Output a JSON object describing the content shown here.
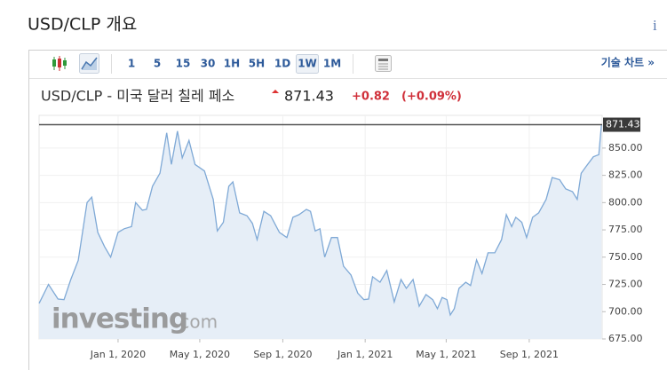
{
  "header": {
    "title": "USD/CLP 개요",
    "info": "i"
  },
  "toolbar": {
    "intervals": [
      "1",
      "5",
      "15",
      "30",
      "1H",
      "5H",
      "1D",
      "1W",
      "1M"
    ],
    "selected": "1W",
    "technical": "기술 차트 »"
  },
  "quote": {
    "name": "USD/CLP - 미국 달러 칠레 페소",
    "price": 871.43,
    "change": "+0.82",
    "change_pct": "(+0.09%)"
  },
  "watermark": {
    "brand": "investing",
    "suffix": ".com"
  },
  "chart_data": {
    "type": "area",
    "color": "#7fa9d6",
    "fill": "#e6eef7",
    "grid": true,
    "x": [
      "Sep 6, 2019",
      "Sep 20, 2019",
      "Oct 4, 2019",
      "Oct 13, 2019",
      "Oct 23, 2019",
      "Nov 3, 2019",
      "Nov 16, 2019",
      "Nov 23, 2019",
      "Dec 2, 2019",
      "Dec 12, 2019",
      "Dec 21, 2019",
      "Jan 1, 2020",
      "Jan 10, 2020",
      "Jan 21, 2020",
      "Jan 27, 2020",
      "Feb 6, 2020",
      "Feb 12, 2020",
      "Feb 21, 2020",
      "Mar 3, 2020",
      "Mar 13, 2020",
      "Mar 20, 2020",
      "Mar 29, 2020",
      "Apr 5, 2020",
      "Apr 15, 2020",
      "Apr 24, 2020",
      "May 8, 2020",
      "May 21, 2020",
      "May 27, 2020",
      "Jun 5, 2020",
      "Jun 13, 2020",
      "Jun 19, 2020",
      "Jun 29, 2020",
      "Jul 10, 2020",
      "Jul 18, 2020",
      "Jul 25, 2020",
      "Aug 4, 2020",
      "Aug 14, 2020",
      "Aug 27, 2020",
      "Sep 7, 2020",
      "Sep 16, 2020",
      "Sep 25, 2020",
      "Oct 6, 2020",
      "Oct 12, 2020",
      "Oct 19, 2020",
      "Oct 26, 2020",
      "Nov 2, 2020",
      "Nov 12, 2020",
      "Nov 21, 2020",
      "Nov 30, 2020",
      "Dec 11, 2020",
      "Dec 21, 2020",
      "Dec 30, 2020",
      "Jan 6, 2021",
      "Jan 12, 2021",
      "Jan 23, 2021",
      "Feb 2, 2021",
      "Feb 13, 2021",
      "Feb 23, 2021",
      "Mar 3, 2021",
      "Mar 13, 2021",
      "Mar 22, 2021",
      "Apr 1, 2021",
      "Apr 11, 2021",
      "Apr 18, 2021",
      "Apr 25, 2021",
      "May 2, 2021",
      "May 7, 2021",
      "May 13, 2021",
      "May 20, 2021",
      "May 30, 2021",
      "Jun 6, 2021",
      "Jun 15, 2021",
      "Jun 23, 2021",
      "Jul 2, 2021",
      "Jul 12, 2021",
      "Jul 22, 2021",
      "Jul 29, 2021",
      "Aug 6, 2021",
      "Aug 12, 2021",
      "Aug 21, 2021",
      "Aug 28, 2021",
      "Sep 6, 2021",
      "Sep 15, 2021",
      "Sep 26, 2021",
      "Oct 5, 2021",
      "Oct 16, 2021",
      "Oct 25, 2021",
      "Nov 4, 2021",
      "Nov 11, 2021",
      "Nov 17, 2021",
      "Nov 24, 2021",
      "Dec 5, 2021",
      "Dec 13, 2021",
      "Dec 17, 2021"
    ],
    "values": [
      707.6,
      725,
      711.6,
      711,
      729.5,
      747,
      800,
      805,
      772.7,
      759.7,
      750,
      772.7,
      776,
      778,
      800,
      793,
      793.8,
      815,
      827,
      864,
      835,
      865.5,
      841,
      857,
      835,
      829,
      803,
      774,
      782,
      815,
      819,
      790.6,
      788,
      781,
      766,
      792,
      788,
      772.7,
      768,
      786.5,
      789,
      793.8,
      792,
      774,
      776,
      750,
      768,
      768,
      741.7,
      733.6,
      717,
      711,
      711.6,
      732,
      727,
      737.7,
      709,
      729.5,
      721.4,
      729.5,
      705,
      715.7,
      711,
      702.7,
      713,
      711,
      697,
      702.7,
      721.4,
      727,
      724,
      747.5,
      735,
      754,
      754,
      766,
      789,
      778,
      786.5,
      782,
      768,
      786.5,
      790.6,
      803,
      823,
      821,
      812.6,
      810,
      803,
      827,
      833,
      842,
      844,
      871.43
    ],
    "xlim": [
      "Sep 6, 2019",
      "Dec 18, 2021"
    ],
    "xticks": [
      "Jan 1, 2020",
      "May 1, 2020",
      "Sep 1, 2020",
      "Jan 1, 2021",
      "May 1, 2021",
      "Sep 1, 2021"
    ],
    "ylim": [
      675,
      880
    ],
    "yticks": [
      {
        "value": 675,
        "label": "675.00"
      },
      {
        "value": 700,
        "label": "700.00"
      },
      {
        "value": 725,
        "label": "725.00"
      },
      {
        "value": 750,
        "label": "750.00"
      },
      {
        "value": 775,
        "label": "775.00"
      },
      {
        "value": 800,
        "label": "800.00"
      },
      {
        "value": 825,
        "label": "825.00"
      },
      {
        "value": 850,
        "label": "850.00"
      }
    ]
  }
}
